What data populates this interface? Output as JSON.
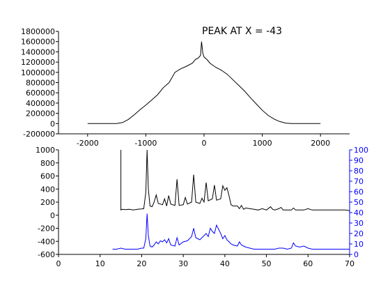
{
  "chart_data": [
    {
      "type": "line",
      "annotation": "PEAK AT X = -43",
      "xlim": [
        -2500,
        2500
      ],
      "ylim": [
        -200000,
        1800000
      ],
      "xticks": [
        -2000,
        -1000,
        0,
        1000,
        2000
      ],
      "yticks": [
        -200000,
        0,
        200000,
        400000,
        600000,
        800000,
        1000000,
        1200000,
        1400000,
        1600000,
        1800000
      ],
      "series": [
        {
          "color": "#000000",
          "x": [
            -2000,
            -1500,
            -1400,
            -1300,
            -1200,
            -1100,
            -1000,
            -900,
            -800,
            -700,
            -600,
            -500,
            -400,
            -300,
            -200,
            -150,
            -100,
            -60,
            -43,
            -20,
            0,
            50,
            100,
            200,
            300,
            400,
            500,
            600,
            700,
            800,
            900,
            1000,
            1100,
            1200,
            1300,
            1400,
            1500,
            2000
          ],
          "y": [
            0,
            0,
            20000,
            80000,
            170000,
            270000,
            360000,
            460000,
            560000,
            700000,
            800000,
            1000000,
            1070000,
            1120000,
            1180000,
            1250000,
            1280000,
            1330000,
            1600000,
            1370000,
            1300000,
            1250000,
            1180000,
            1100000,
            1040000,
            960000,
            850000,
            740000,
            630000,
            500000,
            380000,
            260000,
            160000,
            90000,
            40000,
            10000,
            0,
            0
          ]
        }
      ]
    },
    {
      "type": "line",
      "xlim": [
        0,
        70
      ],
      "ylim": [
        -600,
        1000
      ],
      "ylim_right": [
        0,
        100
      ],
      "xticks": [
        0,
        10,
        20,
        30,
        40,
        50,
        60,
        70
      ],
      "yticks": [
        -600,
        -400,
        -200,
        0,
        200,
        400,
        600,
        800,
        1000
      ],
      "yticks_right": [
        0,
        10,
        20,
        30,
        40,
        50,
        60,
        70,
        80,
        90,
        100
      ],
      "right_axis_color": "#0000ff",
      "series": [
        {
          "color": "#000000",
          "axis": "left",
          "x": [
            15,
            15,
            15.3,
            16,
            17,
            18,
            19,
            20,
            20.5,
            21,
            21.3,
            21.6,
            22,
            22.5,
            23,
            23.5,
            24,
            25,
            25.5,
            26,
            26.5,
            27,
            28,
            28.5,
            29,
            30,
            30.5,
            31,
            32,
            32.5,
            33,
            34,
            34.5,
            35,
            35.5,
            36,
            37,
            37.5,
            38,
            39,
            39.5,
            40,
            40.5,
            41,
            41.5,
            42,
            43,
            43.5,
            44,
            44.5,
            45,
            46,
            47,
            48,
            49,
            50,
            51,
            51.5,
            52,
            53,
            53.5,
            54,
            55,
            56,
            56.5,
            57,
            58,
            59,
            60,
            61,
            62,
            63,
            64,
            65,
            66,
            67,
            68,
            69,
            70
          ],
          "y": [
            1000,
            80,
            90,
            85,
            90,
            80,
            90,
            95,
            100,
            350,
            1000,
            400,
            140,
            130,
            200,
            310,
            180,
            160,
            250,
            140,
            300,
            170,
            150,
            550,
            150,
            160,
            270,
            170,
            200,
            620,
            200,
            180,
            260,
            200,
            500,
            220,
            250,
            460,
            230,
            250,
            450,
            380,
            420,
            300,
            160,
            140,
            140,
            100,
            150,
            90,
            110,
            100,
            90,
            80,
            100,
            80,
            130,
            90,
            80,
            100,
            120,
            80,
            80,
            80,
            110,
            80,
            80,
            80,
            100,
            80,
            80,
            80,
            80,
            80,
            80,
            80,
            80,
            80,
            70
          ]
        },
        {
          "color": "#0000ff",
          "axis": "right",
          "x": [
            13,
            14,
            15,
            16,
            17,
            18,
            19,
            20,
            20.5,
            21,
            21.3,
            21.6,
            22,
            22.5,
            23,
            23.5,
            24,
            24.5,
            25,
            25.5,
            26,
            26.5,
            27,
            28,
            28.5,
            29,
            30,
            31,
            32,
            32.5,
            33,
            34,
            35,
            35.5,
            36,
            36.5,
            37,
            37.5,
            38,
            38.5,
            39,
            39.5,
            40,
            40.5,
            41,
            41.5,
            42,
            43,
            43.5,
            44,
            45,
            46,
            47,
            48,
            49,
            50,
            51,
            52,
            53,
            54,
            55,
            56,
            56.5,
            57,
            58,
            59,
            60,
            61,
            62,
            63,
            64,
            65,
            66,
            67,
            68,
            69,
            70
          ],
          "y": [
            5,
            5,
            6,
            5,
            5,
            5,
            5,
            6,
            6,
            15,
            39,
            18,
            8,
            7,
            9,
            12,
            10,
            13,
            12,
            14,
            11,
            15,
            9,
            8,
            16,
            9,
            12,
            13,
            17,
            25,
            16,
            14,
            18,
            20,
            17,
            25,
            22,
            20,
            28,
            24,
            20,
            15,
            18,
            14,
            12,
            10,
            9,
            8,
            12,
            9,
            7,
            6,
            5,
            5,
            5,
            5,
            5,
            5,
            6,
            6,
            5,
            6,
            11,
            8,
            7,
            8,
            6,
            5,
            5,
            5,
            5,
            5,
            5,
            5,
            5,
            5,
            5
          ]
        }
      ]
    }
  ]
}
